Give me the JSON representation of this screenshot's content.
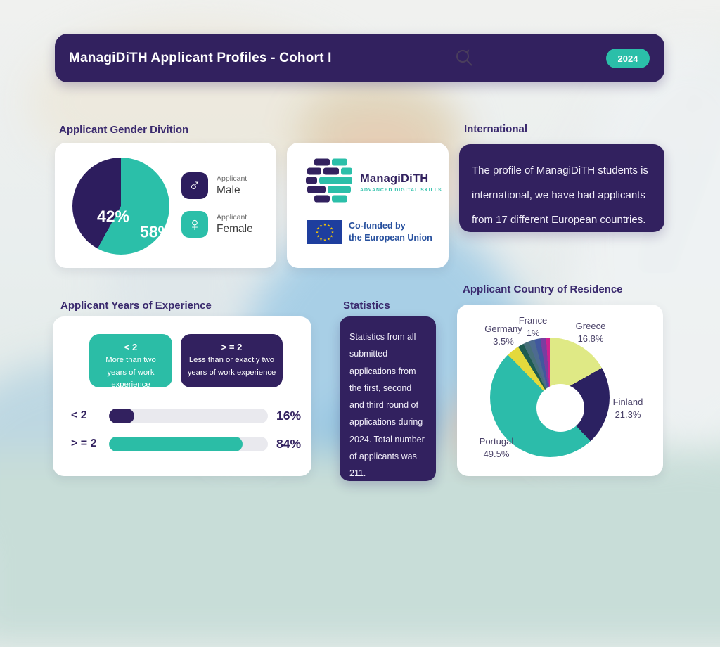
{
  "header": {
    "title": "ManagiDiTH Applicant Profiles - Cohort I",
    "year_badge": "2024"
  },
  "gender": {
    "heading": "Applicant Gender Divition",
    "male_pct_label": "42%",
    "female_pct_label": "58%",
    "male_small": "Applicant",
    "male_label": "Male",
    "female_small": "Applicant",
    "female_label": "Female",
    "male_symbol": "♂",
    "female_symbol": "♀"
  },
  "logo_card": {
    "brand": "ManagiDiTH",
    "brand_sub": "ADVANCED DIGITAL SKILLS",
    "eu_line1": "Co-funded by",
    "eu_line2": "the European Union"
  },
  "international": {
    "heading": "International",
    "text": "The profile of ManagiDiTH students is international, we have had applicants from 17 different European countries."
  },
  "experience": {
    "heading": "Applicant Years of Experience",
    "badges": [
      {
        "title": "< 2",
        "text": "More than two years of work experience"
      },
      {
        "title": "> = 2",
        "text": "Less than or exactly two years of work experience"
      }
    ],
    "rows": [
      {
        "label": "< 2",
        "display": "16%"
      },
      {
        "label": "> = 2",
        "display": "84%"
      }
    ]
  },
  "statistics": {
    "heading": "Statistics",
    "text": "Statistics from all submitted applications from the first, second and third round of applications during 2024. Total number of applicants was 211."
  },
  "country": {
    "heading": "Applicant Country of Residence",
    "labels": [
      {
        "name": "Germany",
        "pct": "3.5%"
      },
      {
        "name": "France",
        "pct": "1%"
      },
      {
        "name": "Greece",
        "pct": "16.8%"
      },
      {
        "name": "Finland",
        "pct": "21.3%"
      },
      {
        "name": "Portugal",
        "pct": "49.5%"
      }
    ]
  },
  "colors": {
    "purple": "#32215f",
    "teal": "#2bbfa9",
    "heading": "#3a2a6e",
    "lime": "#dfe985",
    "yellow": "#e4d93c"
  },
  "chart_data": [
    {
      "id": "gender-pie",
      "type": "pie",
      "title": "Applicant Gender Divition",
      "categories": [
        "Applicant Female",
        "Applicant Male"
      ],
      "values": [
        58,
        42
      ],
      "colors": [
        "#2bbfa9",
        "#2d1d5e"
      ],
      "labels": [
        "58%",
        "42%"
      ],
      "legend_position": "right"
    },
    {
      "id": "country-donut",
      "type": "pie",
      "donut": true,
      "title": "Applicant Country of Residence",
      "categories": [
        "Greece",
        "Finland",
        "Portugal",
        "Germany",
        "Other",
        "Other",
        "Other",
        "Other",
        "Other",
        "France"
      ],
      "values": [
        16.8,
        21.3,
        49.5,
        3.5,
        1.58,
        1.58,
        1.58,
        1.58,
        1.58,
        1.0
      ],
      "colors": [
        "#dfe985",
        "#2b2161",
        "#2cbcaa",
        "#e4d93c",
        "#1e5c50",
        "#47707a",
        "#4d6b90",
        "#41589e",
        "#7a3da0",
        "#d0218f"
      ],
      "labeled_slices": [
        {
          "name": "Greece",
          "value": 16.8
        },
        {
          "name": "Finland",
          "value": 21.3
        },
        {
          "name": "Portugal",
          "value": 49.5
        },
        {
          "name": "Germany",
          "value": 3.5
        },
        {
          "name": "France",
          "value": 1.0
        }
      ]
    },
    {
      "id": "experience-bars",
      "type": "bar",
      "title": "Applicant Years of Experience",
      "categories": [
        "< 2",
        "> = 2"
      ],
      "values": [
        16,
        84
      ],
      "colors": [
        "#32215f",
        "#2bbda6"
      ],
      "xlim": [
        0,
        100
      ]
    }
  ]
}
